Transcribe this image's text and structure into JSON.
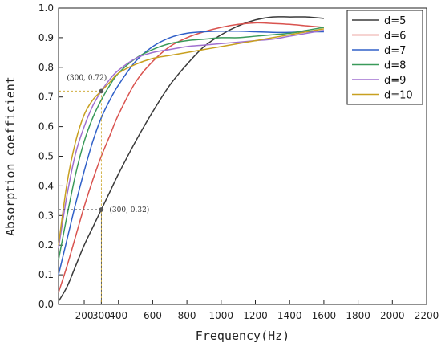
{
  "chart_data": {
    "type": "line",
    "title": "",
    "xlabel": "Frequency(Hz)",
    "ylabel": "Absorption coefficient",
    "xlim": [
      50,
      2200
    ],
    "ylim": [
      0,
      1.0
    ],
    "xticks": [
      200,
      300,
      400,
      600,
      800,
      1000,
      1200,
      1400,
      1600,
      1800,
      2000,
      2200
    ],
    "xtick_labels": [
      "200",
      "300",
      "400",
      "600",
      "800",
      "1000",
      "1200",
      "1400",
      "1600",
      "1800",
      "2000",
      "2200"
    ],
    "yticks": [
      0.0,
      0.1,
      0.2,
      0.3,
      0.4,
      0.5,
      0.6,
      0.7,
      0.8,
      0.9,
      1.0
    ],
    "ytick_labels": [
      "0.0",
      "0.1",
      "0.2",
      "0.3",
      "0.4",
      "0.5",
      "0.6",
      "0.7",
      "0.8",
      "0.9",
      "1.0"
    ],
    "grid": false,
    "legend_position": "top-right",
    "series": [
      {
        "name": "d=5",
        "color": "#3a3a3a",
        "x": [
          50,
          100,
          150,
          200,
          250,
          300,
          350,
          400,
          500,
          600,
          700,
          800,
          900,
          1000,
          1100,
          1200,
          1300,
          1400,
          1500,
          1600
        ],
        "y": [
          0.01,
          0.06,
          0.13,
          0.2,
          0.26,
          0.32,
          0.38,
          0.44,
          0.55,
          0.65,
          0.74,
          0.81,
          0.87,
          0.91,
          0.94,
          0.96,
          0.97,
          0.97,
          0.97,
          0.965
        ]
      },
      {
        "name": "d=6",
        "color": "#d9534f",
        "x": [
          50,
          100,
          150,
          200,
          250,
          300,
          350,
          400,
          500,
          600,
          700,
          800,
          900,
          1000,
          1100,
          1200,
          1300,
          1400,
          1500,
          1600
        ],
        "y": [
          0.04,
          0.13,
          0.23,
          0.33,
          0.42,
          0.5,
          0.57,
          0.64,
          0.75,
          0.82,
          0.87,
          0.9,
          0.92,
          0.935,
          0.945,
          0.95,
          0.948,
          0.945,
          0.94,
          0.935
        ]
      },
      {
        "name": "d=7",
        "color": "#3060c8",
        "x": [
          50,
          100,
          150,
          200,
          250,
          300,
          350,
          400,
          500,
          600,
          700,
          800,
          900,
          1000,
          1100,
          1200,
          1300,
          1400,
          1500,
          1600
        ],
        "y": [
          0.1,
          0.22,
          0.34,
          0.45,
          0.55,
          0.63,
          0.69,
          0.74,
          0.82,
          0.87,
          0.9,
          0.915,
          0.92,
          0.922,
          0.922,
          0.92,
          0.918,
          0.918,
          0.92,
          0.92
        ]
      },
      {
        "name": "d=8",
        "color": "#3a9a5a",
        "x": [
          50,
          100,
          150,
          200,
          250,
          300,
          350,
          400,
          500,
          600,
          700,
          800,
          900,
          1000,
          1100,
          1200,
          1300,
          1400,
          1500,
          1600
        ],
        "y": [
          0.15,
          0.3,
          0.44,
          0.55,
          0.63,
          0.69,
          0.74,
          0.78,
          0.83,
          0.86,
          0.88,
          0.89,
          0.895,
          0.9,
          0.9,
          0.905,
          0.91,
          0.915,
          0.925,
          0.935
        ]
      },
      {
        "name": "d=9",
        "color": "#a070d0",
        "x": [
          50,
          100,
          150,
          200,
          250,
          300,
          350,
          400,
          500,
          600,
          700,
          800,
          900,
          1000,
          1100,
          1200,
          1300,
          1400,
          1500,
          1600
        ],
        "y": [
          0.19,
          0.37,
          0.51,
          0.6,
          0.67,
          0.72,
          0.76,
          0.79,
          0.83,
          0.85,
          0.86,
          0.87,
          0.875,
          0.88,
          0.885,
          0.89,
          0.895,
          0.905,
          0.915,
          0.925
        ]
      },
      {
        "name": "d=10",
        "color": "#c8a020",
        "x": [
          50,
          100,
          150,
          200,
          250,
          300,
          350,
          400,
          500,
          600,
          700,
          800,
          900,
          1000,
          1100,
          1200,
          1300,
          1400,
          1500,
          1600
        ],
        "y": [
          0.2,
          0.41,
          0.55,
          0.64,
          0.69,
          0.72,
          0.75,
          0.78,
          0.81,
          0.83,
          0.84,
          0.85,
          0.86,
          0.87,
          0.88,
          0.89,
          0.9,
          0.91,
          0.92,
          0.93
        ]
      }
    ],
    "annotations": [
      {
        "text": "(300, 0.72)",
        "x": 300,
        "y": 0.72,
        "color": "#c8a020",
        "label_side": "upper-left"
      },
      {
        "text": "(300, 0.32)",
        "x": 300,
        "y": 0.32,
        "color": "#3a3a3a",
        "label_side": "right"
      }
    ]
  }
}
